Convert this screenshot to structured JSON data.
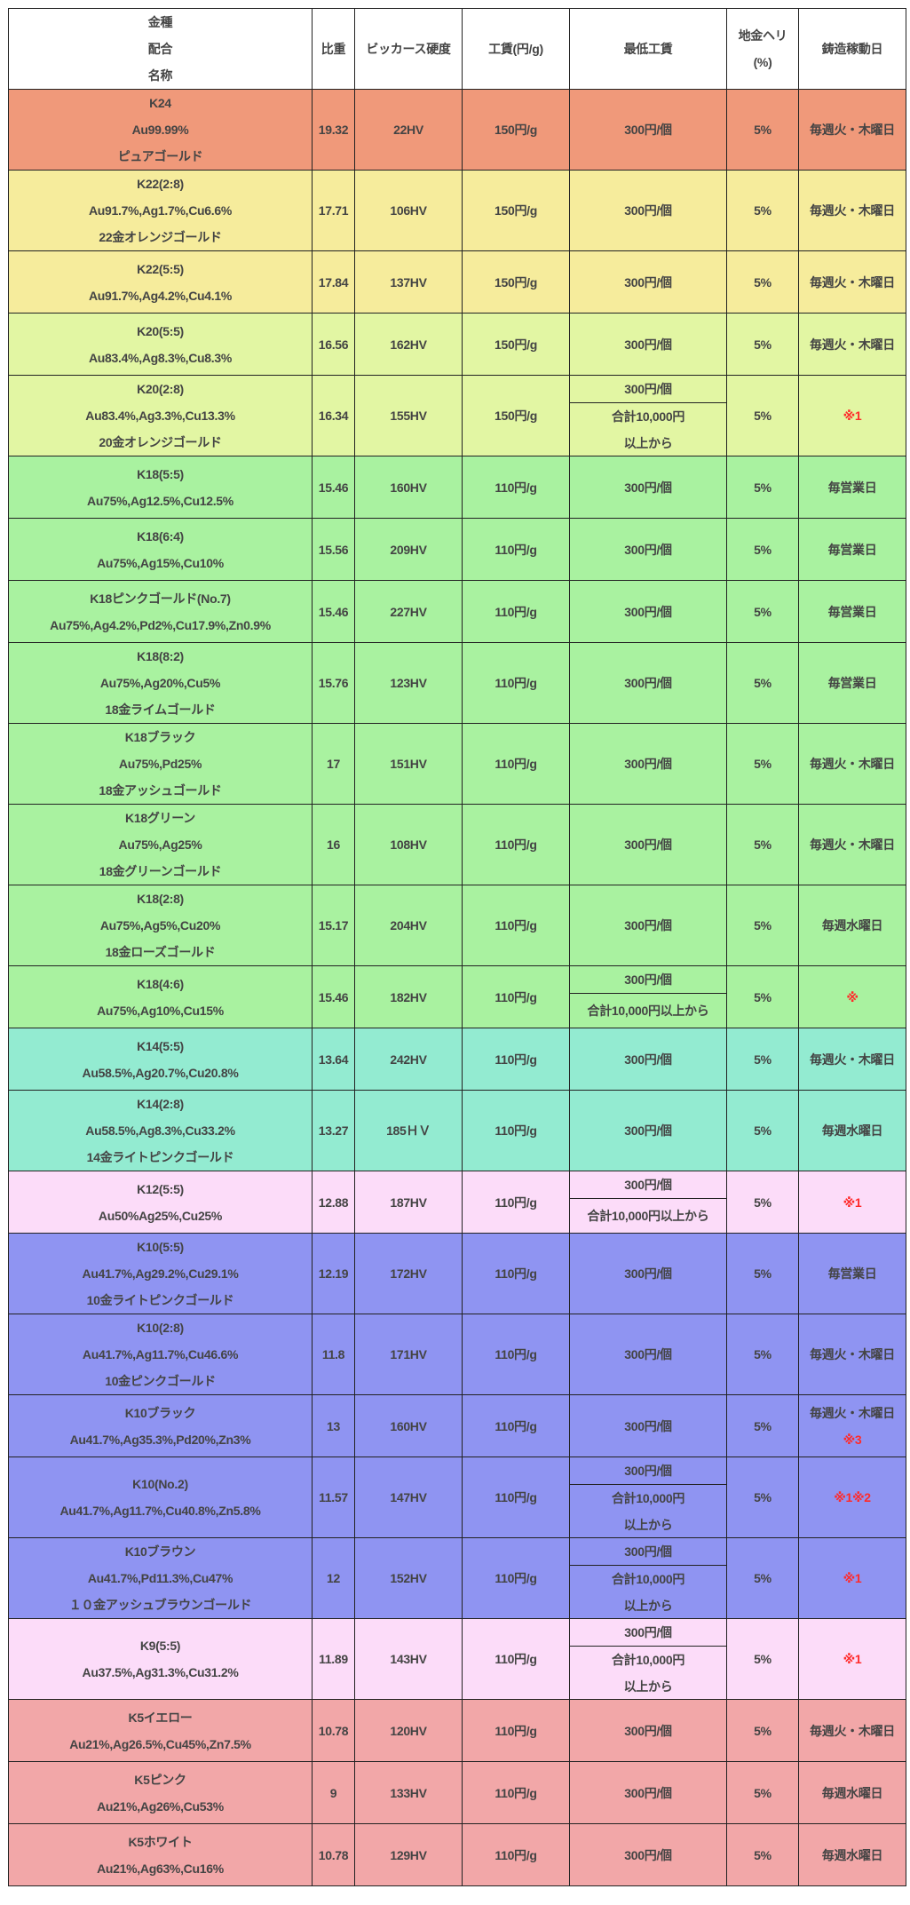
{
  "header": {
    "name_col": [
      "金種",
      "配合",
      "名称"
    ],
    "gravity": "比重",
    "hardness": "ビッカース硬度",
    "wage": "工賃(円/g)",
    "min_wage": "最低工賃",
    "loss": [
      "地金ヘリ",
      "(%)"
    ],
    "casting_days": "鋳造稼動日"
  },
  "colors": {
    "K24": "#f0997a",
    "K22": "#f6ec9c",
    "K20": "#e2f6a3",
    "K18": "#a9f2a0",
    "K14": "#93ebd1",
    "K12": "#fcdcf9",
    "K10": "#8f94f2",
    "K9": "#fcdcf9",
    "K5": "#f2a7a8",
    "note_red": "#ff2a2a"
  },
  "rows": [
    {
      "group": "K24",
      "name": [
        "K24",
        "Au99.99%",
        "ピュアゴールド"
      ],
      "gravity": "19.32",
      "hardness": "22HV",
      "wage": "150円/g",
      "min": [
        "300円/個"
      ],
      "loss": "5%",
      "days": [
        "毎週火・木曜日"
      ]
    },
    {
      "group": "K22",
      "name": [
        "K22(2:8)",
        "Au91.7%,Ag1.7%,Cu6.6%",
        "22金オレンジゴールド"
      ],
      "gravity": "17.71",
      "hardness": "106HV",
      "wage": "150円/g",
      "min": [
        "300円/個"
      ],
      "loss": "5%",
      "days": [
        "毎週火・木曜日"
      ]
    },
    {
      "group": "K22",
      "name": [
        "K22(5:5)",
        "Au91.7%,Ag4.2%,Cu4.1%"
      ],
      "gravity": "17.84",
      "hardness": "137HV",
      "wage": "150円/g",
      "min": [
        "300円/個"
      ],
      "loss": "5%",
      "days": [
        "毎週火・木曜日"
      ]
    },
    {
      "group": "K20",
      "name": [
        "K20(5:5)",
        "Au83.4%,Ag8.3%,Cu8.3%"
      ],
      "gravity": "16.56",
      "hardness": "162HV",
      "wage": "150円/g",
      "min": [
        "300円/個"
      ],
      "loss": "5%",
      "days": [
        "毎週火・木曜日"
      ]
    },
    {
      "group": "K20",
      "name": [
        "K20(2:8)",
        "Au83.4%,Ag3.3%,Cu13.3%",
        "20金オレンジゴールド"
      ],
      "gravity": "16.34",
      "hardness": "155HV",
      "wage": "150円/g",
      "min": [
        "300円/個",
        "合計10,000円",
        "以上から"
      ],
      "loss": "5%",
      "days": [],
      "note": "※1"
    },
    {
      "group": "K18",
      "name": [
        "K18(5:5)",
        "Au75%,Ag12.5%,Cu12.5%"
      ],
      "gravity": "15.46",
      "hardness": "160HV",
      "wage": "110円/g",
      "min": [
        "300円/個"
      ],
      "loss": "5%",
      "days": [
        "毎営業日"
      ]
    },
    {
      "group": "K18",
      "name": [
        "K18(6:4)",
        "Au75%,Ag15%,Cu10%"
      ],
      "gravity": "15.56",
      "hardness": "209HV",
      "wage": "110円/g",
      "min": [
        "300円/個"
      ],
      "loss": "5%",
      "days": [
        "毎営業日"
      ]
    },
    {
      "group": "K18",
      "name": [
        "K18ピンクゴールド(No.7)",
        "Au75%,Ag4.2%,Pd2%,Cu17.9%,Zn0.9%"
      ],
      "gravity": "15.46",
      "hardness": "227HV",
      "wage": "110円/g",
      "min": [
        "300円/個"
      ],
      "loss": "5%",
      "days": [
        "毎営業日"
      ]
    },
    {
      "group": "K18",
      "name": [
        "K18(8:2)",
        "Au75%,Ag20%,Cu5%",
        "18金ライムゴールド"
      ],
      "gravity": "15.76",
      "hardness": "123HV",
      "wage": "110円/g",
      "min": [
        "300円/個"
      ],
      "loss": "5%",
      "days": [
        "毎営業日"
      ]
    },
    {
      "group": "K18",
      "name": [
        "K18ブラック",
        "Au75%,Pd25%",
        "18金アッシュゴールド"
      ],
      "gravity": "17",
      "hardness": "151HV",
      "wage": "110円/g",
      "min": [
        "300円/個"
      ],
      "loss": "5%",
      "days": [
        "毎週火・木曜日"
      ]
    },
    {
      "group": "K18",
      "name": [
        "K18グリーン",
        "Au75%,Ag25%",
        "18金グリーンゴールド"
      ],
      "gravity": "16",
      "hardness": "108HV",
      "wage": "110円/g",
      "min": [
        "300円/個"
      ],
      "loss": "5%",
      "days": [
        "毎週火・木曜日"
      ]
    },
    {
      "group": "K18",
      "name": [
        "K18(2:8)",
        "Au75%,Ag5%,Cu20%",
        "18金ローズゴールド"
      ],
      "gravity": "15.17",
      "hardness": "204HV",
      "wage": "110円/g",
      "min": [
        "300円/個"
      ],
      "loss": "5%",
      "days": [
        "毎週水曜日"
      ]
    },
    {
      "group": "K18",
      "name": [
        "K18(4:6)",
        "Au75%,Ag10%,Cu15%"
      ],
      "gravity": "15.46",
      "hardness": "182HV",
      "wage": "110円/g",
      "min": [
        "300円/個",
        "合計10,000円以上から"
      ],
      "loss": "5%",
      "days": [],
      "note": "※"
    },
    {
      "group": "K14",
      "name": [
        "K14(5:5)",
        "Au58.5%,Ag20.7%,Cu20.8%"
      ],
      "gravity": "13.64",
      "hardness": "242HV",
      "wage": "110円/g",
      "min": [
        "300円/個"
      ],
      "loss": "5%",
      "days": [
        "毎週火・木曜日"
      ]
    },
    {
      "group": "K14",
      "name": [
        "K14(2:8)",
        "Au58.5%,Ag8.3%,Cu33.2%",
        "14金ライトピンクゴールド"
      ],
      "gravity": "13.27",
      "hardness": "185ＨＶ",
      "wage": "110円/g",
      "min": [
        "300円/個"
      ],
      "loss": "5%",
      "days": [
        "毎週水曜日"
      ]
    },
    {
      "group": "K12",
      "name": [
        "K12(5:5)",
        "Au50%Ag25%,Cu25%"
      ],
      "gravity": "12.88",
      "hardness": "187HV",
      "wage": "110円/g",
      "min": [
        "300円/個",
        "合計10,000円以上から"
      ],
      "loss": "5%",
      "days": [],
      "note": "※1"
    },
    {
      "group": "K10",
      "name": [
        "K10(5:5)",
        "Au41.7%,Ag29.2%,Cu29.1%",
        "10金ライトピンクゴールド"
      ],
      "gravity": "12.19",
      "hardness": "172HV",
      "wage": "110円/g",
      "min": [
        "300円/個"
      ],
      "loss": "5%",
      "days": [
        "毎営業日"
      ]
    },
    {
      "group": "K10",
      "name": [
        "K10(2:8)",
        "Au41.7%,Ag11.7%,Cu46.6%",
        "10金ピンクゴールド"
      ],
      "gravity": "11.8",
      "hardness": "171HV",
      "wage": "110円/g",
      "min": [
        "300円/個"
      ],
      "loss": "5%",
      "days": [
        "毎週火・木曜日"
      ]
    },
    {
      "group": "K10",
      "name": [
        "K10ブラック",
        "Au41.7%,Ag35.3%,Pd20%,Zn3%"
      ],
      "gravity": "13",
      "hardness": "160HV",
      "wage": "110円/g",
      "min": [
        "300円/個"
      ],
      "loss": "5%",
      "days": [
        "毎週火・木曜日"
      ],
      "note": "※3"
    },
    {
      "group": "K10",
      "name": [
        "K10(No.2)",
        "Au41.7%,Ag11.7%,Cu40.8%,Zn5.8%"
      ],
      "gravity": "11.57",
      "hardness": "147HV",
      "wage": "110円/g",
      "min": [
        "300円/個",
        "合計10,000円",
        "以上から"
      ],
      "loss": "5%",
      "days": [],
      "note": "※1※2"
    },
    {
      "group": "K10",
      "name": [
        "K10ブラウン",
        "Au41.7%,Pd11.3%,Cu47%",
        "１０金アッシュブラウンゴールド"
      ],
      "gravity": "12",
      "hardness": "152HV",
      "wage": "110円/g",
      "min": [
        "300円/個",
        "合計10,000円",
        "以上から"
      ],
      "loss": "5%",
      "days": [],
      "note": "※1"
    },
    {
      "group": "K9",
      "name": [
        "K9(5:5)",
        "Au37.5%,Ag31.3%,Cu31.2%"
      ],
      "gravity": "11.89",
      "hardness": "143HV",
      "wage": "110円/g",
      "min": [
        "300円/個",
        "合計10,000円",
        "以上から"
      ],
      "loss": "5%",
      "days": [],
      "note": "※1"
    },
    {
      "group": "K5",
      "name": [
        "K5イエロー",
        "Au21%,Ag26.5%,Cu45%,Zn7.5%"
      ],
      "gravity": "10.78",
      "hardness": "120HV",
      "wage": "110円/g",
      "min": [
        "300円/個"
      ],
      "loss": "5%",
      "days": [
        "毎週火・木曜日"
      ]
    },
    {
      "group": "K5",
      "name": [
        "K5ピンク",
        "Au21%,Ag26%,Cu53%"
      ],
      "gravity": "9",
      "hardness": "133HV",
      "wage": "110円/g",
      "min": [
        "300円/個"
      ],
      "loss": "5%",
      "days": [
        "毎週水曜日"
      ]
    },
    {
      "group": "K5",
      "name": [
        "K5ホワイト",
        "Au21%,Ag63%,Cu16%"
      ],
      "gravity": "10.78",
      "hardness": "129HV",
      "wage": "110円/g",
      "min": [
        "300円/個"
      ],
      "loss": "5%",
      "days": [
        "毎週水曜日"
      ]
    }
  ]
}
